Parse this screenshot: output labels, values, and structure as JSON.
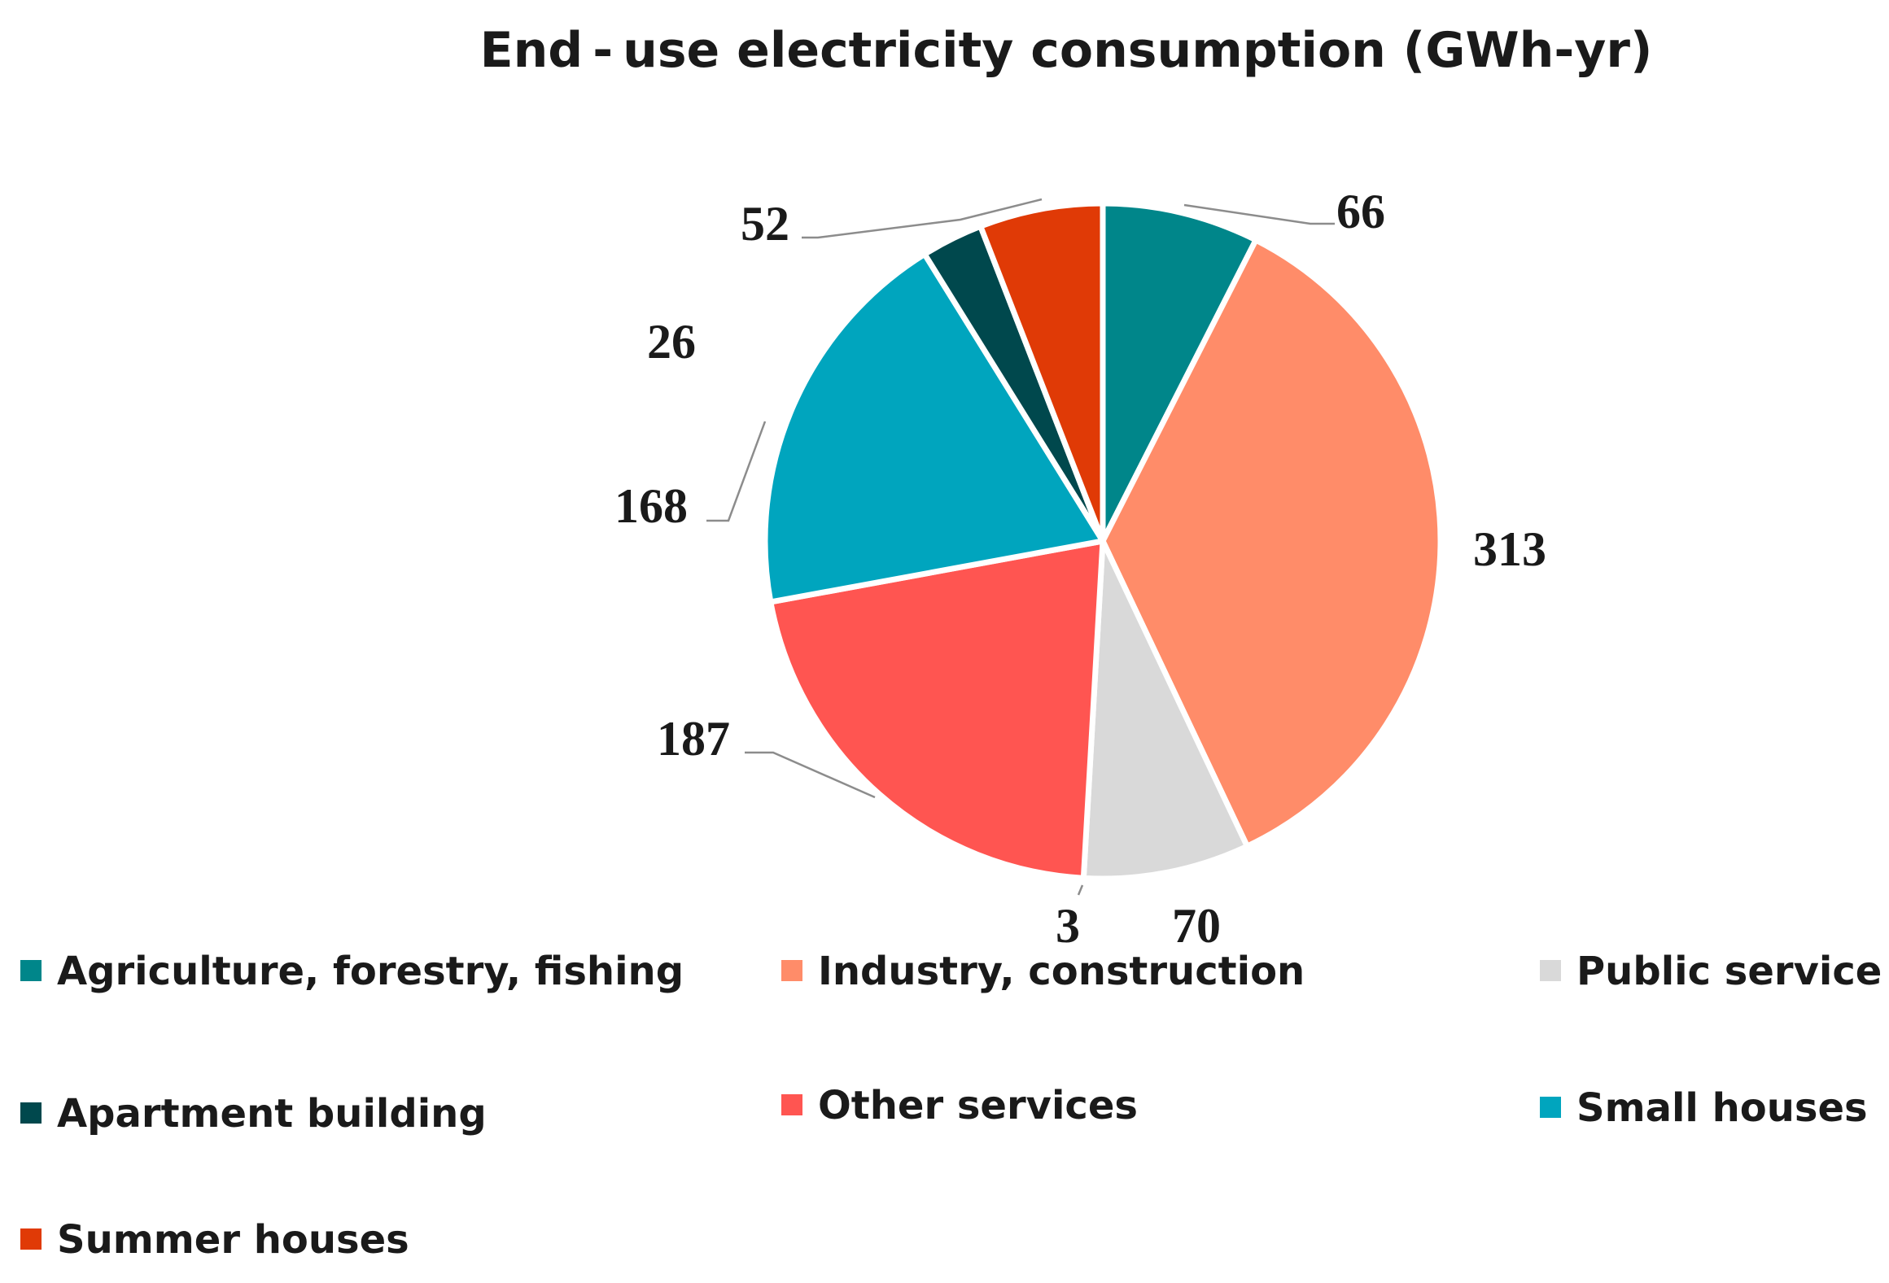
{
  "chart_data": {
    "type": "pie",
    "title": "End - use electricity consumption (GWh-yr)",
    "categories": [
      "Agriculture, forestry, fishing",
      "Industry, construction",
      "Public service",
      "Other services",
      "Small houses",
      "Apartment building",
      "Summer houses"
    ],
    "values": [
      66,
      313,
      70,
      187,
      168,
      26,
      52
    ],
    "label_texts": [
      "66",
      "313",
      "70",
      "187",
      "168",
      "26",
      "52"
    ],
    "extra_label": "3",
    "colors": [
      "#00868a",
      "#ff8c69",
      "#d9d9d9",
      "#ff5551",
      "#00a5be",
      "#00484d",
      "#e03a06"
    ],
    "legend": [
      {
        "name": "Agriculture, forestry, fishing",
        "color": "#00868a"
      },
      {
        "name": "Industry, construction",
        "color": "#ff8c69"
      },
      {
        "name": "Public service",
        "color": "#d9d9d9"
      },
      {
        "name": "Apartment building",
        "color": "#00484d"
      },
      {
        "name": "Other services",
        "color": "#ff5551"
      },
      {
        "name": "Small houses",
        "color": "#00a5be"
      },
      {
        "name": "Summer houses",
        "color": "#e03a06"
      }
    ],
    "legend_position": "bottom"
  }
}
